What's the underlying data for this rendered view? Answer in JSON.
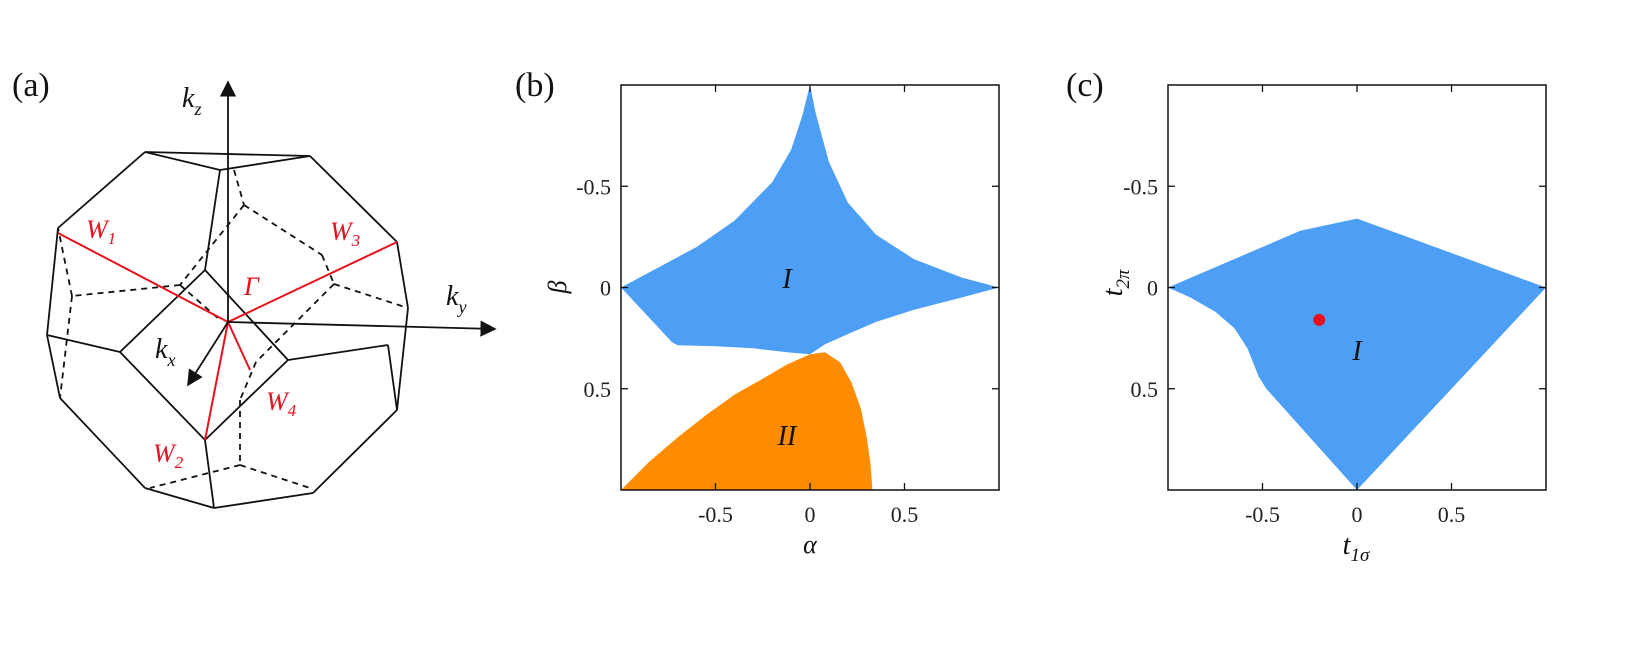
{
  "panel_labels": {
    "a": "(a)",
    "b": "(b)",
    "c": "(c)"
  },
  "colors": {
    "region_I": "#4d9ef5",
    "region_II": "#ff8c00",
    "highlight": "#e8101c",
    "edge": "#111111"
  },
  "brillouin_zone": {
    "axes": {
      "kz": "k",
      "kz_sub": "z",
      "ky": "k",
      "ky_sub": "y",
      "kx": "k",
      "kx_sub": "x"
    },
    "center": "Γ",
    "points": [
      {
        "name": "W",
        "sub": "1"
      },
      {
        "name": "W",
        "sub": "2"
      },
      {
        "name": "W",
        "sub": "3"
      },
      {
        "name": "W",
        "sub": "4"
      }
    ]
  },
  "chart_data": [
    {
      "type": "area",
      "panel": "(b)",
      "xlabel": "α",
      "ylabel": "β",
      "xlim": [
        -1,
        1
      ],
      "ylim": [
        -1,
        1
      ],
      "y_inverted": true,
      "x_ticks": [
        "-0.5",
        "0",
        "0.5"
      ],
      "y_ticks": [
        "-0.5",
        "0",
        "0.5"
      ],
      "x_tick_values": [
        -0.5,
        0,
        0.5
      ],
      "y_tick_values": [
        -0.5,
        0,
        0.5
      ],
      "regions": [
        {
          "label": "I",
          "label_pos": [
            -0.1,
            0.04
          ],
          "color_key": "region_I",
          "boundary": [
            [
              -1,
              0
            ],
            [
              -0.8,
              -0.1
            ],
            [
              -0.6,
              -0.2
            ],
            [
              -0.4,
              -0.33
            ],
            [
              -0.2,
              -0.52
            ],
            [
              -0.1,
              -0.68
            ],
            [
              -0.04,
              -0.85
            ],
            [
              0,
              -1
            ],
            [
              0.03,
              -0.86
            ],
            [
              0.1,
              -0.62
            ],
            [
              0.2,
              -0.42
            ],
            [
              0.35,
              -0.26
            ],
            [
              0.55,
              -0.14
            ],
            [
              0.8,
              -0.05
            ],
            [
              1,
              0
            ],
            [
              0.8,
              0.05
            ],
            [
              0.55,
              0.11
            ],
            [
              0.35,
              0.17
            ],
            [
              0.2,
              0.23
            ],
            [
              0.08,
              0.28
            ],
            [
              0,
              0.33
            ],
            [
              -0.12,
              0.32
            ],
            [
              -0.3,
              0.3
            ],
            [
              -0.5,
              0.29
            ],
            [
              -0.7,
              0.285
            ],
            [
              -0.73,
              0.27
            ],
            [
              -0.8,
              0.2
            ],
            [
              -0.9,
              0.1
            ],
            [
              -0.97,
              0.03
            ],
            [
              -1,
              0
            ]
          ]
        },
        {
          "label": "II",
          "label_pos": [
            -0.12,
            0.76
          ],
          "color_key": "region_II",
          "boundary": [
            [
              -1,
              1
            ],
            [
              -0.85,
              0.86
            ],
            [
              -0.7,
              0.74
            ],
            [
              -0.55,
              0.63
            ],
            [
              -0.4,
              0.53
            ],
            [
              -0.25,
              0.45
            ],
            [
              -0.12,
              0.38
            ],
            [
              0,
              0.33
            ],
            [
              0.08,
              0.32
            ],
            [
              0.16,
              0.37
            ],
            [
              0.22,
              0.47
            ],
            [
              0.27,
              0.6
            ],
            [
              0.3,
              0.74
            ],
            [
              0.32,
              0.87
            ],
            [
              0.33,
              1
            ],
            [
              -1,
              1
            ]
          ]
        }
      ]
    },
    {
      "type": "scatter",
      "panel": "(c)",
      "xlabel": "t",
      "xlabel_sub": "1σ",
      "ylabel": "t",
      "ylabel_sub": "2π",
      "xlim": [
        -1,
        1
      ],
      "ylim": [
        -1,
        1
      ],
      "y_inverted": true,
      "x_ticks": [
        "-0.5",
        "0",
        "0.5"
      ],
      "y_ticks": [
        "-0.5",
        "0",
        "0.5"
      ],
      "x_tick_values": [
        -0.5,
        0,
        0.5
      ],
      "y_tick_values": [
        -0.5,
        0,
        0.5
      ],
      "regions": [
        {
          "label": "I",
          "label_pos": [
            0.0,
            0.3
          ],
          "color_key": "region_I",
          "boundary": [
            [
              -1,
              0
            ],
            [
              -0.3,
              -0.28
            ],
            [
              0,
              -0.34
            ],
            [
              1,
              0
            ],
            [
              0,
              1
            ],
            [
              -0.48,
              0.5
            ],
            [
              -0.52,
              0.44
            ],
            [
              -0.58,
              0.3
            ],
            [
              -0.65,
              0.2
            ],
            [
              -0.75,
              0.12
            ],
            [
              -0.88,
              0.05
            ],
            [
              -1,
              0
            ]
          ]
        }
      ],
      "points": [
        {
          "x": -0.2,
          "y": 0.16,
          "color_key": "highlight"
        }
      ]
    }
  ]
}
